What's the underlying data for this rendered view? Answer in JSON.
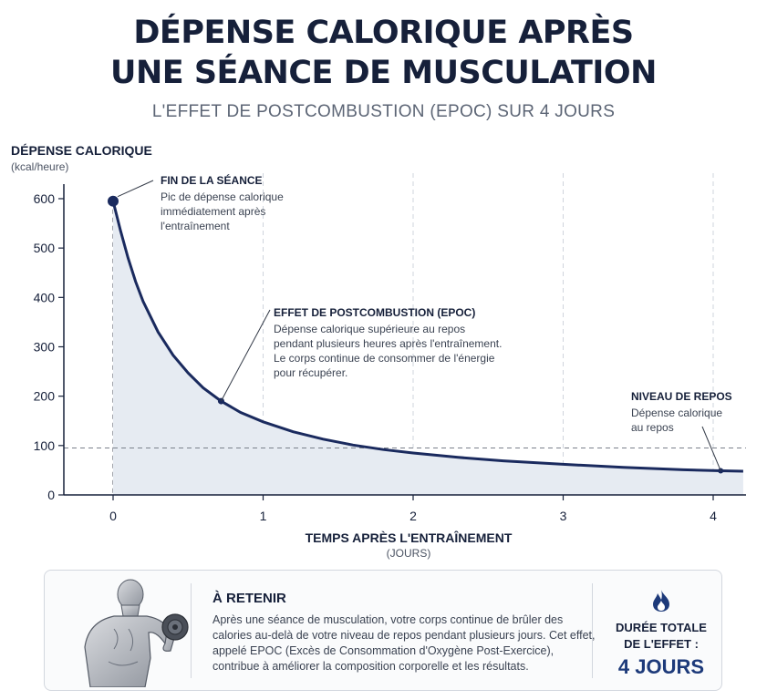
{
  "title_line1": "DÉPENSE CALORIQUE APRÈS",
  "title_line2": "UNE SÉANCE DE MUSCULATION",
  "subtitle": "L'EFFET DE POSTCOMBUSTION (EPOC) SUR 4 JOURS",
  "colors": {
    "curve": "#1a2a5e",
    "fill": "#e6ebf2",
    "grid": "#cfd4dc",
    "accent": "#1d3a7a"
  },
  "chart_data": {
    "type": "area",
    "title": "DÉPENSE CALORIQUE APRÈS UNE SÉANCE DE MUSCULATION",
    "subtitle": "L'EFFET DE POSTCOMBUSTION (EPOC) SUR 4 JOURS",
    "ylabel": "DÉPENSE CALORIQUE",
    "yunit": "(kcal/heure)",
    "xlabel": "TEMPS APRÈS L'ENTRAÎNEMENT",
    "xunit": "(JOURS)",
    "xlim": [
      -0.4,
      4.2
    ],
    "ylim": [
      0,
      650
    ],
    "x_ticks": [
      "0",
      "1",
      "2",
      "3",
      "4"
    ],
    "y_ticks": [
      "0",
      "100",
      "200",
      "300",
      "400",
      "500",
      "600"
    ],
    "grid": "vertical dashed",
    "series": [
      {
        "x": [
          0,
          0.05,
          0.1,
          0.15,
          0.2,
          0.3,
          0.4,
          0.5,
          0.6,
          0.72,
          0.85,
          1.0,
          1.2,
          1.4,
          1.6,
          1.8,
          2.0,
          2.3,
          2.6,
          3.0,
          3.4,
          3.8,
          4.05,
          4.2
        ],
        "y": [
          595,
          535,
          480,
          432,
          392,
          330,
          283,
          247,
          217,
          190,
          167,
          148,
          128,
          113,
          101,
          92,
          85,
          76,
          69,
          62,
          56,
          51,
          49,
          48
        ]
      }
    ],
    "reference_line": {
      "y": 95
    },
    "annotations": [
      {
        "title": "FIN DE LA SÉANCE",
        "lines": [
          "Pic de dépense calorique",
          "immédiatement après",
          "l'entraînement"
        ],
        "point": [
          0,
          595
        ]
      },
      {
        "title": "EFFET DE POSTCOMBUSTION (EPOC)",
        "lines": [
          "Dépense calorique supérieure au repos",
          "pendant plusieurs heures après l'entraînement.",
          "Le corps continue de consommer de l'énergie",
          "pour récupérer."
        ],
        "point": [
          0.72,
          190
        ]
      },
      {
        "title": "NIVEAU DE REPOS",
        "lines": [
          "Dépense calorique",
          "au repos"
        ],
        "point": [
          4.05,
          49
        ]
      }
    ]
  },
  "summary": {
    "title": "À RETENIR",
    "text": "Après une séance de musculation, votre corps continue de brûler des calories au-delà de votre niveau de repos pendant plusieurs jours. Cet effet, appelé EPOC (Excès de Consommation d'Oxygène Post-Exercice), contribue à améliorer la composition corporelle et les résultats.",
    "duration_label_1": "DURÉE TOTALE",
    "duration_label_2": "DE L'EFFET :",
    "duration_value": "4 JOURS",
    "icons": [
      "athlete-illustration-icon",
      "flame-icon"
    ]
  }
}
